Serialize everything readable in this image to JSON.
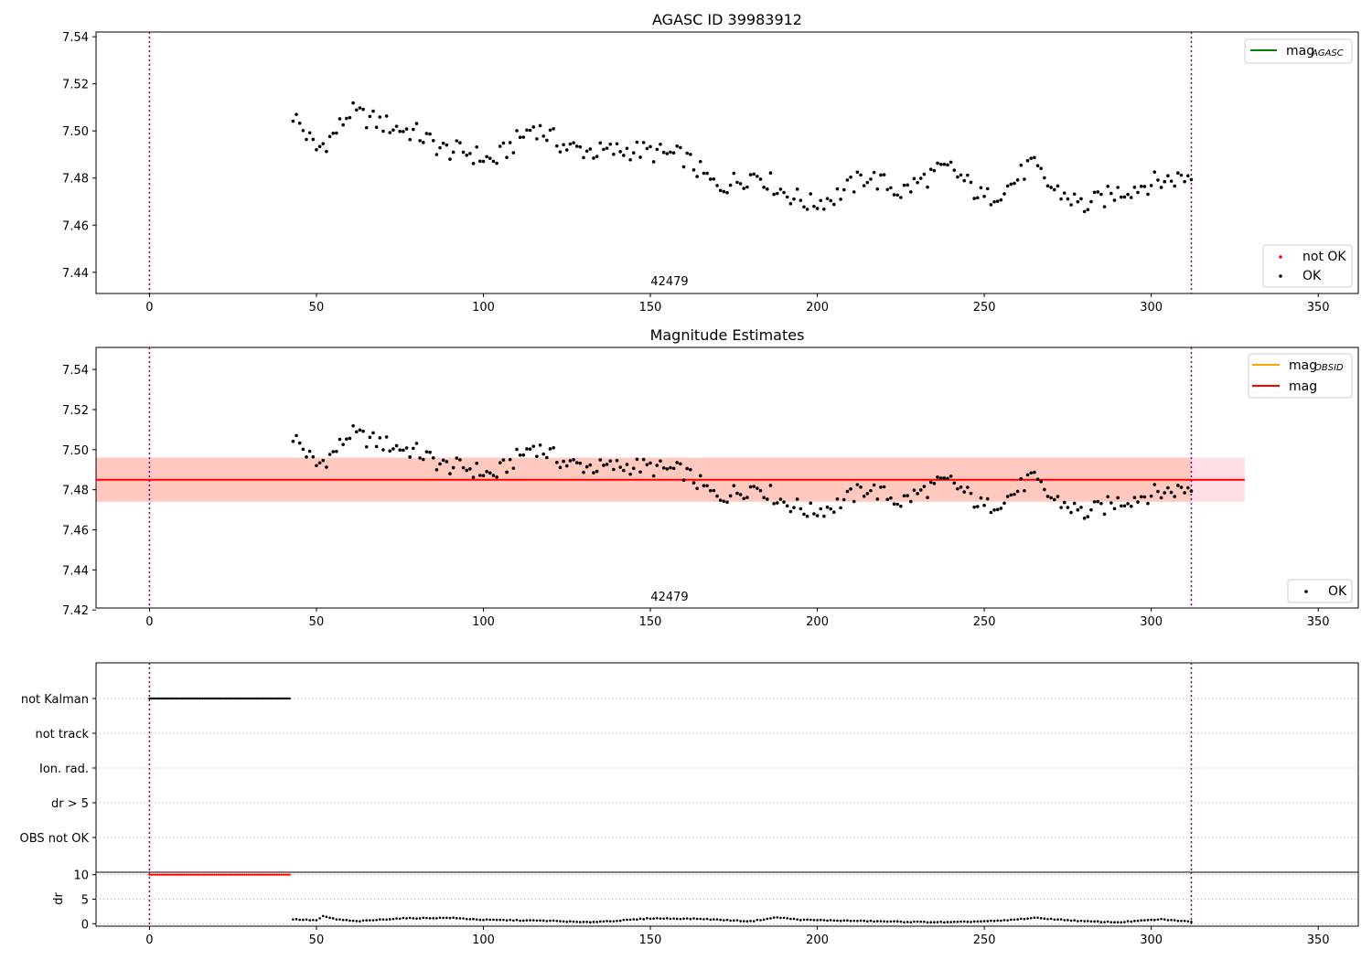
{
  "colors": {
    "ok": "#000000",
    "not_ok": "#ff0000",
    "mag_agasc": "#008000",
    "mag_obsid": "#ffa500",
    "mag": "#ff0000",
    "band_outer": "#ffc0cb",
    "band_inner": "#ffa07a",
    "vline": "#800080",
    "grid": "#b0b0b0"
  },
  "chart_data": [
    {
      "type": "scatter",
      "title": "AGASC ID 39983912",
      "annotation": "42479",
      "xlim": [
        -16,
        362
      ],
      "ylim": [
        7.431,
        7.542
      ],
      "xticks": [
        0,
        50,
        100,
        150,
        200,
        250,
        300,
        350
      ],
      "yticks": [
        7.44,
        7.46,
        7.48,
        7.5,
        7.52,
        7.54
      ],
      "ytick_labels": [
        "7.44",
        "7.46",
        "7.48",
        "7.50",
        "7.52",
        "7.54"
      ],
      "vlines": [
        0,
        312
      ],
      "legend_lines": [
        {
          "label_main": "mag",
          "label_sub": "AGASC",
          "color_key": "mag_agasc"
        }
      ],
      "legend_points": [
        {
          "label": "not OK",
          "color_key": "not_ok"
        },
        {
          "label": "OK",
          "color_key": "ok"
        }
      ],
      "series": [
        {
          "name": "OK",
          "x_start": 43,
          "x_end": 312,
          "y_anchors": [
            [
              43,
              7.507
            ],
            [
              50,
              7.492
            ],
            [
              55,
              7.498
            ],
            [
              60,
              7.508
            ],
            [
              70,
              7.503
            ],
            [
              80,
              7.499
            ],
            [
              88,
              7.492
            ],
            [
              95,
              7.491
            ],
            [
              103,
              7.487
            ],
            [
              115,
              7.502
            ],
            [
              125,
              7.493
            ],
            [
              135,
              7.491
            ],
            [
              145,
              7.492
            ],
            [
              160,
              7.489
            ],
            [
              170,
              7.476
            ],
            [
              182,
              7.482
            ],
            [
              190,
              7.474
            ],
            [
              198,
              7.469
            ],
            [
              205,
              7.472
            ],
            [
              215,
              7.481
            ],
            [
              225,
              7.474
            ],
            [
              235,
              7.482
            ],
            [
              240,
              7.484
            ],
            [
              250,
              7.471
            ],
            [
              258,
              7.477
            ],
            [
              264,
              7.486
            ],
            [
              270,
              7.476
            ],
            [
              280,
              7.468
            ],
            [
              290,
              7.474
            ],
            [
              300,
              7.478
            ],
            [
              312,
              7.481
            ]
          ]
        }
      ]
    },
    {
      "type": "scatter",
      "title": "Magnitude Estimates",
      "annotation": "42479",
      "xlim": [
        -16,
        362
      ],
      "ylim": [
        7.421,
        7.551
      ],
      "xticks": [
        0,
        50,
        100,
        150,
        200,
        250,
        300,
        350
      ],
      "yticks": [
        7.42,
        7.44,
        7.46,
        7.48,
        7.5,
        7.52,
        7.54
      ],
      "ytick_labels": [
        "7.42",
        "7.44",
        "7.46",
        "7.48",
        "7.50",
        "7.52",
        "7.54"
      ],
      "vlines": [
        0,
        312
      ],
      "mag": 7.485,
      "mag_band": [
        7.474,
        7.496
      ],
      "band_x": [
        -16,
        328
      ],
      "inner_band_x": [
        -16,
        312
      ],
      "legend_lines": [
        {
          "label_main": "mag",
          "label_sub": "OBSID",
          "color_key": "mag_obsid"
        },
        {
          "label_main": "mag",
          "label_sub": "",
          "color_key": "mag"
        }
      ],
      "legend_points": [
        {
          "label": "OK",
          "color_key": "ok"
        }
      ],
      "series": [
        {
          "name": "OK",
          "same_as_panel": 0
        }
      ]
    },
    {
      "type": "scatter",
      "title": "",
      "xlim": [
        -16,
        362
      ],
      "ylim": [
        0,
        6
      ],
      "categories": [
        "not Kalman",
        "not track",
        "Ion. rad.",
        "dr > 5",
        "OBS not OK"
      ],
      "vlines": [
        0,
        312
      ],
      "series": [
        {
          "name": "not Kalman",
          "x_start": 0,
          "x_end": 42,
          "color_key": "ok"
        }
      ]
    },
    {
      "type": "scatter",
      "title": "",
      "ylabel": "dr",
      "xlim": [
        -16,
        362
      ],
      "ylim": [
        -0.5,
        10.5
      ],
      "xticks": [
        0,
        50,
        100,
        150,
        200,
        250,
        300,
        350
      ],
      "yticks": [
        0,
        5,
        10
      ],
      "ytick_labels": [
        "0",
        "5",
        "10"
      ],
      "vlines": [
        0,
        312
      ],
      "series": [
        {
          "name": "not OK",
          "x_start": 0,
          "x_end": 42,
          "y": 10,
          "color_key": "not_ok"
        },
        {
          "name": "OK",
          "x_start": 43,
          "x_end": 312,
          "y_anchors": [
            [
              43,
              0.9
            ],
            [
              50,
              0.7
            ],
            [
              52,
              1.5
            ],
            [
              56,
              0.9
            ],
            [
              62,
              0.5
            ],
            [
              75,
              1.1
            ],
            [
              90,
              1.2
            ],
            [
              100,
              0.8
            ],
            [
              120,
              0.6
            ],
            [
              130,
              0.3
            ],
            [
              140,
              0.6
            ],
            [
              150,
              1.1
            ],
            [
              165,
              1.0
            ],
            [
              180,
              0.5
            ],
            [
              188,
              1.3
            ],
            [
              195,
              0.8
            ],
            [
              210,
              0.6
            ],
            [
              225,
              0.4
            ],
            [
              240,
              0.3
            ],
            [
              255,
              0.6
            ],
            [
              265,
              1.2
            ],
            [
              280,
              0.5
            ],
            [
              290,
              0.3
            ],
            [
              303,
              0.9
            ],
            [
              312,
              0.4
            ]
          ]
        }
      ]
    }
  ]
}
